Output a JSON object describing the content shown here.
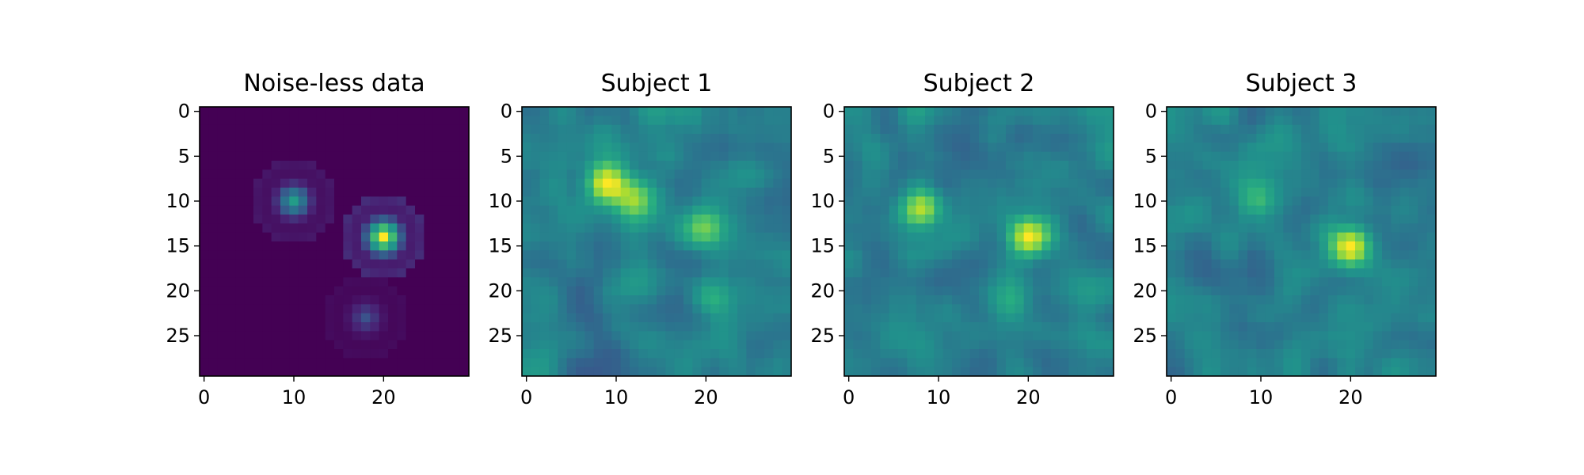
{
  "chart_data": [
    {
      "type": "heatmap",
      "title": "Noise-less data",
      "grid": false,
      "xlim": [
        -0.5,
        29.5
      ],
      "ylim": [
        29.5,
        -0.5
      ],
      "xticks": [
        0,
        10,
        20
      ],
      "yticks": [
        0,
        5,
        10,
        15,
        20,
        25
      ],
      "colormap": "viridis",
      "blobs": [
        {
          "x": 10,
          "y": 10,
          "radius": 4.5,
          "peak": 0.55
        },
        {
          "x": 20,
          "y": 14,
          "radius": 4.5,
          "peak": 1.0
        },
        {
          "x": 18,
          "y": 23,
          "radius": 4.5,
          "peak": 0.25
        }
      ]
    },
    {
      "type": "heatmap",
      "title": "Subject 1",
      "grid": false,
      "xlim": [
        -0.5,
        29.5
      ],
      "ylim": [
        29.5,
        -0.5
      ],
      "xticks": [
        0,
        10,
        20
      ],
      "yticks": [
        0,
        5,
        10,
        15,
        20,
        25
      ],
      "colormap": "viridis",
      "blobs": [
        {
          "x": 9,
          "y": 8,
          "radius": 2.5,
          "peak": 0.55
        },
        {
          "x": 12,
          "y": 10,
          "radius": 2.5,
          "peak": 0.4
        },
        {
          "x": 20,
          "y": 13,
          "radius": 2.5,
          "peak": 0.35
        },
        {
          "x": 21,
          "y": 21,
          "radius": 2.5,
          "peak": 0.3
        }
      ]
    },
    {
      "type": "heatmap",
      "title": "Subject 2",
      "grid": false,
      "xlim": [
        -0.5,
        29.5
      ],
      "ylim": [
        29.5,
        -0.5
      ],
      "xticks": [
        0,
        10,
        20
      ],
      "yticks": [
        0,
        5,
        10,
        15,
        20,
        25
      ],
      "colormap": "viridis",
      "blobs": [
        {
          "x": 8,
          "y": 11,
          "radius": 2.3,
          "peak": 0.45
        },
        {
          "x": 20,
          "y": 14,
          "radius": 2.5,
          "peak": 0.55
        },
        {
          "x": 18,
          "y": 21,
          "radius": 2.5,
          "peak": 0.25
        }
      ]
    },
    {
      "type": "heatmap",
      "title": "Subject 3",
      "grid": false,
      "xlim": [
        -0.5,
        29.5
      ],
      "ylim": [
        29.5,
        -0.5
      ],
      "xticks": [
        0,
        10,
        20
      ],
      "yticks": [
        0,
        5,
        10,
        15,
        20,
        25
      ],
      "colormap": "viridis",
      "blobs": [
        {
          "x": 10,
          "y": 10,
          "radius": 2.3,
          "peak": 0.3
        },
        {
          "x": 20,
          "y": 15,
          "radius": 2.5,
          "peak": 0.55
        }
      ]
    }
  ]
}
